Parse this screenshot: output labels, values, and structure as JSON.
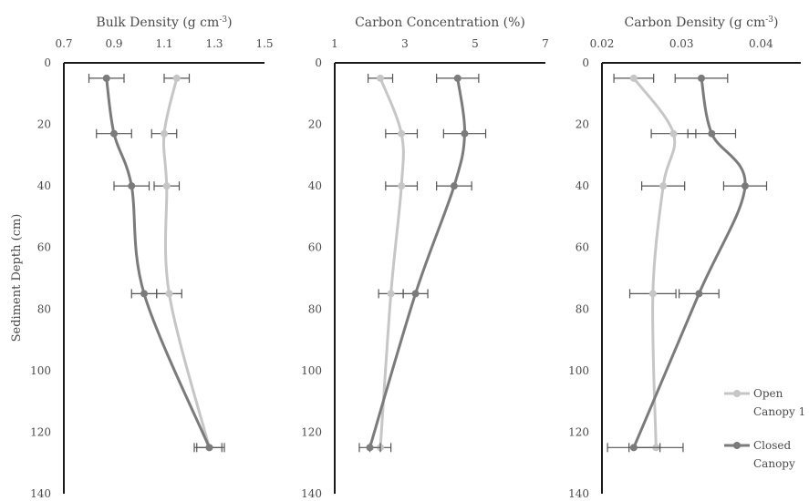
{
  "colors": {
    "open": "#c6c6c6",
    "closed": "#7b7b7b",
    "axis": "#1a1a1a",
    "err": "#555555",
    "text": "#4a4a4a"
  },
  "legend": {
    "open": "Open Canopy 1",
    "closed": "Closed Canopy"
  },
  "ylabel": "Sediment Depth (cm)",
  "chart_data": [
    {
      "type": "line",
      "title": "Bulk Density (g cm-3)",
      "title_main": "Bulk Density (g cm",
      "title_sup": "-3",
      "title_end": ")",
      "xlim": [
        0.7,
        1.5
      ],
      "xticks": [
        "0.7",
        "0.9",
        "1.1",
        "1.3",
        "1.5"
      ],
      "xtick_values": [
        0.7,
        0.9,
        1.1,
        1.3,
        1.5
      ],
      "ylim": [
        0,
        140
      ],
      "yticks": [
        "0",
        "20",
        "40",
        "60",
        "80",
        "100",
        "120",
        "140"
      ],
      "ytick_values": [
        0,
        20,
        40,
        60,
        80,
        100,
        120,
        140
      ],
      "series": [
        {
          "name": "Open Canopy 1",
          "depth": [
            5,
            23,
            40,
            75,
            125
          ],
          "values": [
            1.15,
            1.1,
            1.11,
            1.12,
            1.28
          ],
          "error": [
            0.05,
            0.05,
            0.05,
            0.05,
            0.05
          ]
        },
        {
          "name": "Closed Canopy",
          "depth": [
            5,
            23,
            40,
            75,
            125
          ],
          "values": [
            0.87,
            0.9,
            0.97,
            1.02,
            1.28
          ],
          "error": [
            0.07,
            0.07,
            0.07,
            0.05,
            0.06
          ]
        }
      ]
    },
    {
      "type": "line",
      "title": "Carbon Concentration (%)",
      "title_main": "Carbon Concentration  (%)",
      "title_sup": "",
      "title_end": "",
      "xlim": [
        1,
        7
      ],
      "xticks": [
        "1",
        "3",
        "5",
        "7"
      ],
      "xtick_values": [
        1,
        3,
        5,
        7
      ],
      "ylim": [
        0,
        140
      ],
      "yticks": [
        "0",
        "20",
        "40",
        "60",
        "80",
        "100",
        "120",
        "140"
      ],
      "ytick_values": [
        0,
        20,
        40,
        60,
        80,
        100,
        120,
        140
      ],
      "series": [
        {
          "name": "Open Canopy 1",
          "depth": [
            5,
            23,
            40,
            75,
            125
          ],
          "values": [
            2.3,
            2.9,
            2.9,
            2.6,
            2.3
          ],
          "error": [
            0.35,
            0.45,
            0.45,
            0.35,
            0.3
          ]
        },
        {
          "name": "Closed Canopy",
          "depth": [
            5,
            23,
            40,
            75,
            125
          ],
          "values": [
            4.5,
            4.7,
            4.4,
            3.3,
            2.0
          ],
          "error": [
            0.6,
            0.6,
            0.5,
            0.35,
            0.3
          ]
        }
      ]
    },
    {
      "type": "line",
      "title": "Carbon Density (g cm-3)",
      "title_main": "Carbon Density (g cm",
      "title_sup": "-3",
      "title_end": ")",
      "xlim": [
        0.02,
        0.045
      ],
      "xticks": [
        "0.02",
        "0.03",
        "0.04"
      ],
      "xtick_values": [
        0.02,
        0.03,
        0.04
      ],
      "ylim": [
        0,
        140
      ],
      "yticks": [
        "0",
        "20",
        "40",
        "60",
        "80",
        "100",
        "120",
        "140"
      ],
      "ytick_values": [
        0,
        20,
        40,
        60,
        80,
        100,
        120,
        140
      ],
      "series": [
        {
          "name": "Open Canopy 1",
          "depth": [
            5,
            23,
            40,
            75,
            125
          ],
          "values": [
            0.024,
            0.029,
            0.0277,
            0.0264,
            0.0268
          ],
          "error": [
            0.0025,
            0.0028,
            0.0027,
            0.0029,
            0.0034
          ]
        },
        {
          "name": "Closed Canopy",
          "depth": [
            5,
            23,
            40,
            75,
            125
          ],
          "values": [
            0.0325,
            0.0338,
            0.038,
            0.0322,
            0.024
          ],
          "error": [
            0.0033,
            0.003,
            0.0027,
            0.0025,
            0.0033
          ]
        }
      ]
    }
  ]
}
